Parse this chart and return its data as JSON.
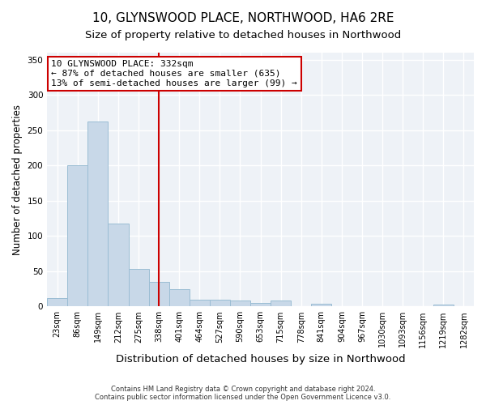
{
  "title": "10, GLYNSWOOD PLACE, NORTHWOOD, HA6 2RE",
  "subtitle": "Size of property relative to detached houses in Northwood",
  "xlabel": "Distribution of detached houses by size in Northwood",
  "ylabel": "Number of detached properties",
  "categories": [
    "23sqm",
    "86sqm",
    "149sqm",
    "212sqm",
    "275sqm",
    "338sqm",
    "401sqm",
    "464sqm",
    "527sqm",
    "590sqm",
    "653sqm",
    "715sqm",
    "778sqm",
    "841sqm",
    "904sqm",
    "967sqm",
    "1030sqm",
    "1093sqm",
    "1156sqm",
    "1219sqm",
    "1282sqm"
  ],
  "values": [
    12,
    200,
    262,
    117,
    53,
    35,
    25,
    10,
    10,
    8,
    5,
    8,
    0,
    4,
    0,
    0,
    0,
    0,
    0,
    3,
    0
  ],
  "bar_color": "#c8d8e8",
  "bar_edgecolor": "#9bbdd4",
  "red_line_index": 5,
  "red_line_color": "#cc0000",
  "annotation_line1": "10 GLYNSWOOD PLACE: 332sqm",
  "annotation_line2": "← 87% of detached houses are smaller (635)",
  "annotation_line3": "13% of semi-detached houses are larger (99) →",
  "annotation_box_color": "#ffffff",
  "annotation_box_edgecolor": "#cc0000",
  "ylim": [
    0,
    360
  ],
  "yticks": [
    0,
    50,
    100,
    150,
    200,
    250,
    300,
    350
  ],
  "background_color": "#eef2f7",
  "grid_color": "#ffffff",
  "footnote": "Contains HM Land Registry data © Crown copyright and database right 2024.\nContains public sector information licensed under the Open Government Licence v3.0.",
  "title_fontsize": 11,
  "subtitle_fontsize": 9.5,
  "ylabel_fontsize": 8.5,
  "xlabel_fontsize": 9.5,
  "annotation_fontsize": 8,
  "tick_fontsize": 7
}
